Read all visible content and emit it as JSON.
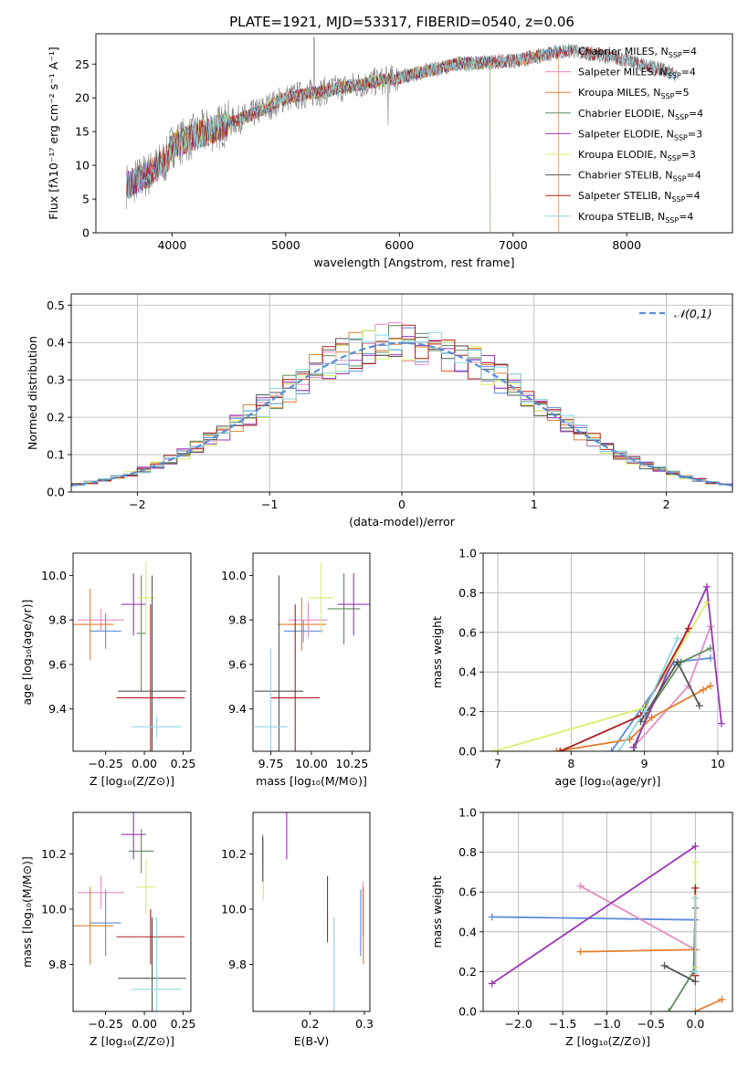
{
  "title": "PLATE=1921, MJD=53317, FIBERID=0540, z=0.06",
  "colors": {
    "chabrier_miles": "#5b8bd6",
    "salpeter_miles": "#e68cc0",
    "kroupa_miles": "#e07e2e",
    "chabrier_elodie": "#5f8c5f",
    "salpeter_elodie": "#9a36b8",
    "kroupa_elodie": "#d8ee6a",
    "chabrier_stelib": "#555555",
    "salpeter_stelib": "#b21e1e",
    "kroupa_stelib": "#8fd6e0",
    "data": "#808080",
    "normal": "#5b8bd6"
  },
  "chart_data": [
    {
      "id": "spectrum",
      "type": "line",
      "xlabel": "wavelength [Angstrom, rest frame]",
      "ylabel": "Flux [fλ10⁻¹⁷ erg cm⁻² s⁻¹ A⁻¹]",
      "xlim": [
        3330,
        8930
      ],
      "ylim": [
        0,
        29.5
      ],
      "xticks": [
        4000,
        5000,
        6000,
        7000,
        8000
      ],
      "yticks": [
        0,
        5,
        10,
        15,
        20,
        25
      ],
      "grid": false,
      "legend_position": "right",
      "legend": [
        {
          "label": "Chabrier MILES, N",
          "sub": "SSP",
          "suffix": "=4",
          "color_key": "chabrier_miles"
        },
        {
          "label": "Salpeter MILES, N",
          "sub": "SSP",
          "suffix": "=4",
          "color_key": "salpeter_miles"
        },
        {
          "label": "Kroupa MILES, N",
          "sub": "SSP",
          "suffix": "=5",
          "color_key": "kroupa_miles"
        },
        {
          "label": "Chabrier ELODIE, N",
          "sub": "SSP",
          "suffix": "=4",
          "color_key": "chabrier_elodie"
        },
        {
          "label": "Salpeter ELODIE, N",
          "sub": "SSP",
          "suffix": "=3",
          "color_key": "salpeter_elodie"
        },
        {
          "label": "Kroupa ELODIE, N",
          "sub": "SSP",
          "suffix": "=3",
          "color_key": "kroupa_elodie"
        },
        {
          "label": "Chabrier STELIB, N",
          "sub": "SSP",
          "suffix": "=4",
          "color_key": "chabrier_stelib"
        },
        {
          "label": "Salpeter STELIB, N",
          "sub": "SSP",
          "suffix": "=4",
          "color_key": "salpeter_stelib"
        },
        {
          "label": "Kroupa STELIB, N",
          "sub": "SSP",
          "suffix": "=4",
          "color_key": "kroupa_stelib"
        }
      ],
      "continuum": [
        [
          3600,
          7.0
        ],
        [
          3800,
          8.8
        ],
        [
          3950,
          10.8
        ],
        [
          4000,
          13.0
        ],
        [
          4300,
          15.0
        ],
        [
          4700,
          17.5
        ],
        [
          5000,
          20.0
        ],
        [
          5500,
          21.5
        ],
        [
          6000,
          23.0
        ],
        [
          6500,
          25.0
        ],
        [
          7000,
          25.5
        ],
        [
          7300,
          26.5
        ],
        [
          7500,
          27.0
        ],
        [
          7900,
          26.0
        ],
        [
          8350,
          24.0
        ],
        [
          8450,
          23.0
        ]
      ]
    },
    {
      "id": "residuals",
      "type": "line",
      "xlabel": "(data-model)/error",
      "ylabel": "Normed distribution",
      "xlim": [
        -2.5,
        2.5
      ],
      "ylim": [
        0,
        0.53
      ],
      "xticks": [
        -2,
        -1,
        0,
        1,
        2
      ],
      "xtick_labels": [
        "−2",
        "−1",
        "0",
        "1",
        "2"
      ],
      "yticks": [
        0.0,
        0.1,
        0.2,
        0.3,
        0.4,
        0.5
      ],
      "ytick_labels": [
        "0.0",
        "0.1",
        "0.2",
        "0.3",
        "0.4",
        "0.5"
      ],
      "grid": true,
      "legend_position": "top-right",
      "normal_label": "𝒩(0,1)",
      "bin_width": 0.1
    },
    {
      "id": "age_vs_Z",
      "type": "scatter",
      "xlabel": "Z [log₁₀(Z/Z⊙)]",
      "ylabel": "age  [log₁₀(age/yr)]",
      "xlim": [
        -0.46,
        0.3
      ],
      "ylim": [
        9.21,
        10.1
      ],
      "xticks": [
        -0.25,
        0.0,
        0.25
      ],
      "xtick_labels": [
        "−0.25",
        "0.00",
        "0.25"
      ],
      "yticks": [
        9.4,
        9.6,
        9.8,
        10.0
      ],
      "ytick_labels": [
        "9.4",
        "9.6",
        "9.8",
        "10.0"
      ],
      "grid": false,
      "points": [
        {
          "key": "chabrier_miles",
          "x": -0.25,
          "xerr": 0.1,
          "y": 9.75,
          "yerr": 0.08
        },
        {
          "key": "salpeter_miles",
          "x": -0.28,
          "xerr": 0.15,
          "y": 9.8,
          "yerr": 0.05
        },
        {
          "key": "kroupa_miles",
          "x": -0.35,
          "xerr": 0.15,
          "y": 9.78,
          "yerr": 0.16
        },
        {
          "key": "chabrier_elodie",
          "x": -0.02,
          "xerr": 0.03,
          "y": 9.74,
          "yerr": 0.26
        },
        {
          "key": "salpeter_elodie",
          "x": -0.07,
          "xerr": 0.08,
          "y": 9.87,
          "yerr": 0.14
        },
        {
          "key": "kroupa_elodie",
          "x": 0.01,
          "xerr": 0.06,
          "y": 9.9,
          "yerr": 0.16
        },
        {
          "key": "chabrier_stelib",
          "x": 0.05,
          "xerr": 0.22,
          "y": 9.48,
          "yerr": 0.52
        },
        {
          "key": "salpeter_stelib",
          "x": 0.04,
          "xerr": 0.22,
          "y": 9.45,
          "yerr": 0.42
        },
        {
          "key": "kroupa_stelib",
          "x": 0.08,
          "xerr": 0.16,
          "y": 9.32,
          "yerr": 0.05
        }
      ]
    },
    {
      "id": "age_vs_mass",
      "type": "scatter",
      "xlabel": "mass [log₁₀(M/M⊙)]",
      "ylabel": "",
      "xlim": [
        9.64,
        10.36
      ],
      "ylim": [
        9.21,
        10.1
      ],
      "xticks": [
        9.75,
        10.0,
        10.25
      ],
      "xtick_labels": [
        "9.75",
        "10.00",
        "10.25"
      ],
      "yticks": [
        9.4,
        9.6,
        9.8,
        10.0
      ],
      "ytick_labels": [
        "9.4",
        "9.6",
        "9.8",
        "10.0"
      ],
      "grid": false,
      "points": [
        {
          "key": "chabrier_miles",
          "x": 9.95,
          "xerr": 0.12,
          "y": 9.75,
          "yerr": 0.05
        },
        {
          "key": "salpeter_miles",
          "x": 9.98,
          "xerr": 0.12,
          "y": 9.8,
          "yerr": 0.08
        },
        {
          "key": "kroupa_miles",
          "x": 9.94,
          "xerr": 0.15,
          "y": 9.78,
          "yerr": 0.12
        },
        {
          "key": "chabrier_elodie",
          "x": 10.2,
          "xerr": 0.1,
          "y": 9.85,
          "yerr": 0.16
        },
        {
          "key": "salpeter_elodie",
          "x": 10.26,
          "xerr": 0.1,
          "y": 9.87,
          "yerr": 0.14
        },
        {
          "key": "kroupa_elodie",
          "x": 10.06,
          "xerr": 0.08,
          "y": 9.9,
          "yerr": 0.16
        },
        {
          "key": "chabrier_stelib",
          "x": 9.8,
          "xerr": 0.15,
          "y": 9.48,
          "yerr": 0.52
        },
        {
          "key": "salpeter_stelib",
          "x": 9.9,
          "xerr": 0.15,
          "y": 9.45,
          "yerr": 0.42
        },
        {
          "key": "kroupa_stelib",
          "x": 9.75,
          "xerr": 0.1,
          "y": 9.32,
          "yerr": 0.35
        }
      ]
    },
    {
      "id": "massweight_vs_age",
      "type": "line",
      "xlabel": "age  [log₁₀(age/yr)]",
      "ylabel": "mass weight",
      "xlim": [
        6.8,
        10.2
      ],
      "ylim": [
        0,
        1
      ],
      "xticks": [
        7,
        8,
        9,
        10
      ],
      "xtick_labels": [
        "7",
        "8",
        "9",
        "10"
      ],
      "yticks": [
        0.0,
        0.2,
        0.4,
        0.6,
        0.8,
        1.0
      ],
      "ytick_labels": [
        "0.0",
        "0.2",
        "0.4",
        "0.6",
        "0.8",
        "1.0"
      ],
      "grid": true,
      "series": [
        {
          "key": "chabrier_miles",
          "x": [
            8.55,
            9.4,
            9.9
          ],
          "y": [
            0.0,
            0.45,
            0.47
          ]
        },
        {
          "key": "salpeter_miles",
          "x": [
            8.85,
            9.6,
            9.9
          ],
          "y": [
            0.02,
            0.33,
            0.63
          ]
        },
        {
          "key": "kroupa_miles",
          "x": [
            7.8,
            8.8,
            9.1,
            9.8,
            9.9
          ],
          "y": [
            0.0,
            0.06,
            0.17,
            0.31,
            0.33
          ]
        },
        {
          "key": "chabrier_elodie",
          "x": [
            8.85,
            9.05,
            9.5,
            9.9
          ],
          "y": [
            0.0,
            0.2,
            0.45,
            0.52
          ]
        },
        {
          "key": "salpeter_elodie",
          "x": [
            8.85,
            9.85,
            10.05
          ],
          "y": [
            0.02,
            0.83,
            0.14
          ]
        },
        {
          "key": "kroupa_elodie",
          "x": [
            6.95,
            9.0,
            9.85
          ],
          "y": [
            0.0,
            0.22,
            0.75
          ]
        },
        {
          "key": "chabrier_stelib",
          "x": [
            8.95,
            9.45,
            9.75
          ],
          "y": [
            0.15,
            0.45,
            0.23
          ]
        },
        {
          "key": "salpeter_stelib",
          "x": [
            7.85,
            8.95,
            9.6
          ],
          "y": [
            0.0,
            0.18,
            0.62
          ]
        },
        {
          "key": "kroupa_stelib",
          "x": [
            8.65,
            9.0,
            9.45
          ],
          "y": [
            0.0,
            0.2,
            0.57
          ]
        }
      ]
    },
    {
      "id": "mass_vs_Z",
      "type": "scatter",
      "xlabel": "Z [log₁₀(Z/Z⊙)]",
      "ylabel": "mass [log₁₀(M/M⊙)]",
      "xlim": [
        -0.46,
        0.3
      ],
      "ylim": [
        9.63,
        10.35
      ],
      "xticks": [
        -0.25,
        0.0,
        0.25
      ],
      "xtick_labels": [
        "−0.25",
        "0.00",
        "0.25"
      ],
      "yticks": [
        9.8,
        10.0,
        10.2
      ],
      "ytick_labels": [
        "9.8",
        "10.0",
        "10.2"
      ],
      "grid": false,
      "points": [
        {
          "key": "chabrier_miles",
          "x": -0.25,
          "xerr": 0.1,
          "y": 9.95,
          "yerr": 0.12
        },
        {
          "key": "salpeter_miles",
          "x": -0.28,
          "xerr": 0.15,
          "y": 10.06,
          "yerr": 0.06
        },
        {
          "key": "kroupa_miles",
          "x": -0.35,
          "xerr": 0.15,
          "y": 9.94,
          "yerr": 0.14
        },
        {
          "key": "chabrier_elodie",
          "x": -0.02,
          "xerr": 0.08,
          "y": 10.21,
          "yerr": 0.08
        },
        {
          "key": "salpeter_elodie",
          "x": -0.07,
          "xerr": 0.08,
          "y": 10.27,
          "yerr": 0.09
        },
        {
          "key": "kroupa_elodie",
          "x": 0.01,
          "xerr": 0.06,
          "y": 10.08,
          "yerr": 0.1
        },
        {
          "key": "chabrier_stelib",
          "x": 0.05,
          "xerr": 0.22,
          "y": 9.75,
          "yerr": 0.22
        },
        {
          "key": "salpeter_stelib",
          "x": 0.04,
          "xerr": 0.22,
          "y": 9.9,
          "yerr": 0.1
        },
        {
          "key": "kroupa_stelib",
          "x": 0.08,
          "xerr": 0.16,
          "y": 9.71,
          "yerr": 0.26
        }
      ]
    },
    {
      "id": "mass_vs_ebv",
      "type": "scatter",
      "xlabel": "E(B-V)",
      "ylabel": "",
      "xlim": [
        0.095,
        0.31
      ],
      "ylim": [
        9.63,
        10.35
      ],
      "xticks": [
        0.2,
        0.3
      ],
      "xtick_labels": [
        "0.2",
        "0.3"
      ],
      "yticks": [
        9.8,
        10.0,
        10.2
      ],
      "ytick_labels": [
        "9.8",
        "10.0",
        "10.2"
      ],
      "grid": false,
      "points": [
        {
          "key": "chabrier_miles",
          "x": 0.293,
          "xerr": 0,
          "y": 9.95,
          "yerr": 0.12
        },
        {
          "key": "salpeter_miles",
          "x": 0.297,
          "xerr": 0,
          "y": 10.0,
          "yerr": 0.1
        },
        {
          "key": "kroupa_miles",
          "x": 0.298,
          "xerr": 0,
          "y": 9.94,
          "yerr": 0.14
        },
        {
          "key": "chabrier_elodie",
          "x": 0.113,
          "xerr": 0,
          "y": 10.21,
          "yerr": 0.06
        },
        {
          "key": "salpeter_elodie",
          "x": 0.157,
          "xerr": 0,
          "y": 10.27,
          "yerr": 0.09
        },
        {
          "key": "kroupa_elodie",
          "x": 0.114,
          "xerr": 0,
          "y": 10.14,
          "yerr": 0.11
        },
        {
          "key": "chabrier_stelib",
          "x": 0.113,
          "xerr": 0,
          "y": 10.18,
          "yerr": 0.08
        },
        {
          "key": "salpeter_stelib",
          "x": 0.232,
          "xerr": 0,
          "y": 10.0,
          "yerr": 0.12
        },
        {
          "key": "kroupa_stelib",
          "x": 0.244,
          "xerr": 0,
          "y": 9.8,
          "yerr": 0.17
        }
      ]
    },
    {
      "id": "massweight_vs_Z",
      "type": "line",
      "xlabel": "Z [log₁₀(Z/Z⊙)]",
      "ylabel": "mass weight",
      "xlim": [
        -2.4,
        0.42
      ],
      "ylim": [
        0,
        1
      ],
      "xticks": [
        -2.0,
        -1.5,
        -1.0,
        -0.5,
        0.0
      ],
      "xtick_labels": [
        "−2.0",
        "−1.5",
        "−1.0",
        "−0.5",
        "0.0"
      ],
      "yticks": [
        0.0,
        0.2,
        0.4,
        0.6,
        0.8,
        1.0
      ],
      "ytick_labels": [
        "0.0",
        "0.2",
        "0.4",
        "0.6",
        "0.8",
        "1.0"
      ],
      "grid": true,
      "series": [
        {
          "key": "chabrier_miles",
          "x": [
            -2.3,
            0.0
          ],
          "y": [
            0.475,
            0.46
          ]
        },
        {
          "key": "salpeter_miles",
          "x": [
            -1.3,
            0.0
          ],
          "y": [
            0.63,
            0.31
          ]
        },
        {
          "key": "kroupa_miles",
          "x": [
            -1.3,
            0.0
          ],
          "y": [
            0.3,
            0.31
          ]
        },
        {
          "key": "kroupa_miles",
          "x": [
            0.0,
            0.3
          ],
          "y": [
            0.0,
            0.06
          ]
        },
        {
          "key": "chabrier_elodie",
          "x": [
            -0.3,
            -0.02,
            0.0
          ],
          "y": [
            0.0,
            0.2,
            0.52
          ]
        },
        {
          "key": "salpeter_elodie",
          "x": [
            -2.3,
            0.0
          ],
          "y": [
            0.14,
            0.83
          ]
        },
        {
          "key": "kroupa_elodie",
          "x": [
            0.0,
            0.0
          ],
          "y": [
            0.22,
            0.75
          ]
        },
        {
          "key": "chabrier_stelib",
          "x": [
            -0.35,
            0.0
          ],
          "y": [
            0.23,
            0.15
          ]
        },
        {
          "key": "salpeter_stelib",
          "x": [
            0.0,
            0.0
          ],
          "y": [
            0.18,
            0.62
          ]
        },
        {
          "key": "kroupa_stelib",
          "x": [
            0.0,
            0.0
          ],
          "y": [
            0.2,
            0.57
          ]
        }
      ]
    }
  ]
}
